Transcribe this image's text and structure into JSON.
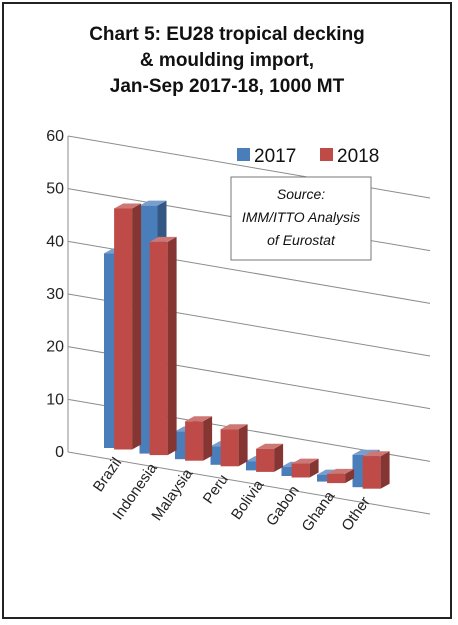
{
  "title_lines": [
    "Chart 5: EU28 tropical decking",
    "& moulding import,",
    "Jan-Sep 2017-18, 1000 MT"
  ],
  "colors": {
    "series_2017": "#4a7ebb",
    "series_2018": "#be4b48",
    "grid": "#8c8c8c"
  },
  "chart_data": {
    "type": "bar",
    "categories": [
      "Brazil",
      "Indonesia",
      "Malaysia",
      "Peru",
      "Bolivia",
      "Gabon",
      "Ghana",
      "Other"
    ],
    "series": [
      {
        "name": "2017",
        "values": [
          42,
          53.5,
          6,
          4,
          2,
          2,
          1.5,
          7
        ]
      },
      {
        "name": "2018",
        "values": [
          52,
          46,
          8.5,
          8,
          5,
          3,
          2,
          7
        ]
      }
    ],
    "ylim": [
      0,
      60
    ],
    "yticks": [
      0,
      10,
      20,
      30,
      40,
      50,
      60
    ],
    "grid": true,
    "legend_position": "top-right",
    "annotation": [
      "Source:",
      "IMM/ITTO Analysis",
      "of Eurostat"
    ]
  }
}
